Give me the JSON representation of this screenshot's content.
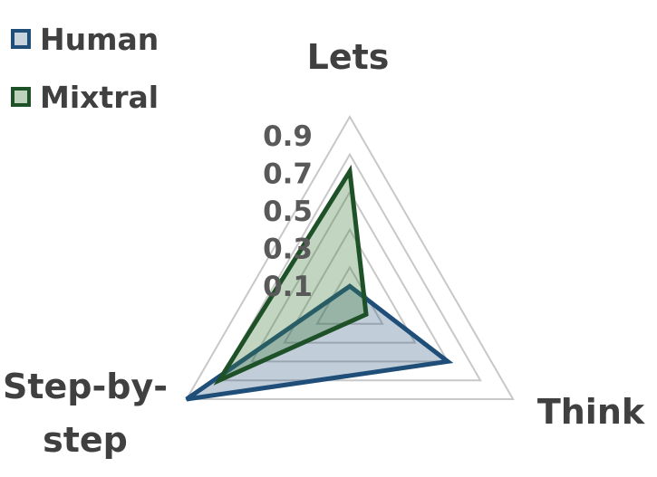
{
  "chart_data": {
    "type": "radar",
    "axes": [
      "Lets",
      "Think",
      "Step-by-step"
    ],
    "axis_label_lines": [
      [
        "Lets"
      ],
      [
        "Think"
      ],
      [
        "Step-by-",
        "step"
      ]
    ],
    "ticks": [
      "0.1",
      "0.3",
      "0.5",
      "0.7",
      "0.9"
    ],
    "tick_values": [
      0.1,
      0.3,
      0.5,
      0.7,
      0.9
    ],
    "rmin": 0,
    "rmax": 1.0,
    "grid": true,
    "legend_position": "top-left",
    "series": [
      {
        "name": "Human",
        "values": [
          0.1,
          0.6,
          1.0
        ],
        "stroke": "#1F4E79",
        "fill": "#1F4E79"
      },
      {
        "name": "Mixtral",
        "values": [
          0.71,
          0.1,
          0.8
        ],
        "stroke": "#1E5128",
        "fill": "#3E7D3A"
      }
    ]
  }
}
